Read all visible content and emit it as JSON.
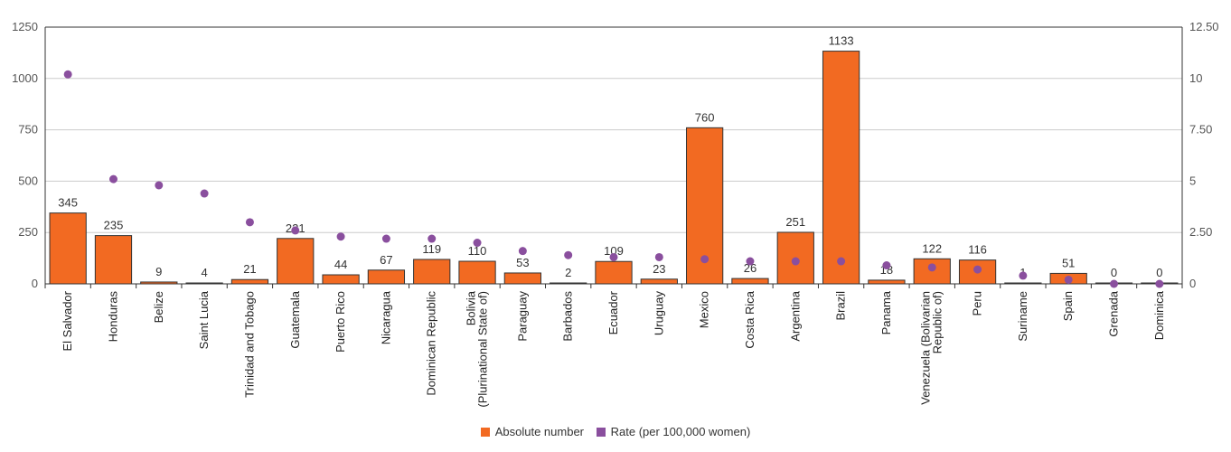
{
  "chart_data": {
    "type": "bar",
    "categories": [
      "El Salvador",
      "Honduras",
      "Belize",
      "Saint Lucia",
      "Trinidad and Tobago",
      "Guatemala",
      "Puerto Rico",
      "Nicaragua",
      "Dominican Republic",
      "Bolivia (Plurinational State of)",
      "Paraguay",
      "Barbados",
      "Ecuador",
      "Uruguay",
      "Mexico",
      "Costa Rica",
      "Argentina",
      "Brazil",
      "Panama",
      "Venezuela (Bolivarian Republic of)",
      "Peru",
      "Suriname",
      "Spain",
      "Grenada",
      "Dominica"
    ],
    "category_lines": [
      [
        "El Salvador"
      ],
      [
        "Honduras"
      ],
      [
        "Belize"
      ],
      [
        "Saint Lucia"
      ],
      [
        "Trinidad and Tobago"
      ],
      [
        "Guatemala"
      ],
      [
        "Puerto Rico"
      ],
      [
        "Nicaragua"
      ],
      [
        "Dominican Republic"
      ],
      [
        "Bolivia",
        "(Plurinational State of)"
      ],
      [
        "Paraguay"
      ],
      [
        "Barbados"
      ],
      [
        "Ecuador"
      ],
      [
        "Uruguay"
      ],
      [
        "Mexico"
      ],
      [
        "Costa Rica"
      ],
      [
        "Argentina"
      ],
      [
        "Brazil"
      ],
      [
        "Panama"
      ],
      [
        "Venezuela (Bolivarian",
        "Republic of)"
      ],
      [
        "Peru"
      ],
      [
        "Suriname"
      ],
      [
        "Spain"
      ],
      [
        "Grenada"
      ],
      [
        "Dominica"
      ]
    ],
    "series": [
      {
        "name": "Absolute number",
        "axis": "left",
        "kind": "bar",
        "color": "#f26a22",
        "values": [
          345,
          235,
          9,
          4,
          21,
          221,
          44,
          67,
          119,
          110,
          53,
          2,
          109,
          23,
          760,
          26,
          251,
          1133,
          18,
          122,
          116,
          1,
          51,
          0,
          0
        ]
      },
      {
        "name": "Rate (per 100,000 women)",
        "axis": "right",
        "kind": "scatter",
        "color": "#8a4f9e",
        "values": [
          10.2,
          5.1,
          4.8,
          4.4,
          3.0,
          2.6,
          2.3,
          2.2,
          2.2,
          2.0,
          1.6,
          1.4,
          1.3,
          1.3,
          1.2,
          1.1,
          1.1,
          1.1,
          0.9,
          0.8,
          0.7,
          0.4,
          0.2,
          0.0,
          0.0
        ]
      }
    ],
    "ylim_left": [
      0,
      1250
    ],
    "ylim_right": [
      0,
      12.5
    ],
    "yticks_left": [
      "0",
      "250",
      "500",
      "750",
      "1000",
      "1250"
    ],
    "yticks_right": [
      "0",
      "2.50",
      "5",
      "7.50",
      "10",
      "12.50"
    ],
    "grid": true,
    "legend_position": "bottom-center"
  }
}
